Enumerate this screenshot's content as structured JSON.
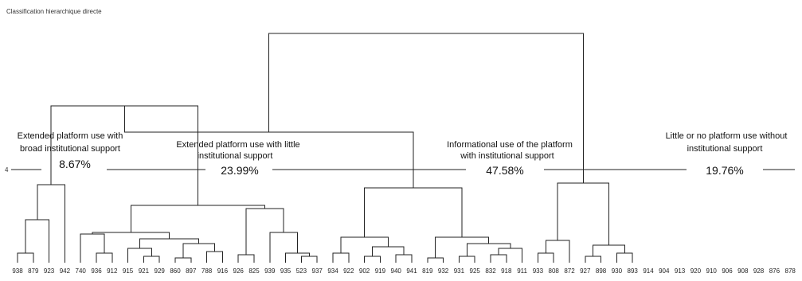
{
  "caption": "Classification hierarchique directe",
  "scale_label": "4",
  "clusters": [
    {
      "title_lines": [
        "Extended platform use with",
        "broad institutional support"
      ],
      "percent": "8.67%"
    },
    {
      "title_lines": [
        "Extended platform use with little",
        "institutional support"
      ],
      "percent": "23.99%"
    },
    {
      "title_lines": [
        "Informational use of the platform",
        "with institutional support"
      ],
      "percent": "47.58%"
    },
    {
      "title_lines": [
        "Little or no platform use without",
        "institutional support"
      ],
      "percent": "19.76%"
    }
  ],
  "leaves": [
    "938",
    "879",
    "923",
    "942",
    "740",
    "936",
    "912",
    "915",
    "921",
    "929",
    "860",
    "897",
    "788",
    "916",
    "926",
    "825",
    "939",
    "935",
    "523",
    "937",
    "934",
    "922",
    "902",
    "919",
    "940",
    "941",
    "819",
    "932",
    "931",
    "925",
    "832",
    "918",
    "911",
    "933",
    "808",
    "872",
    "927",
    "898",
    "930",
    "893",
    "914",
    "904",
    "913",
    "920",
    "910",
    "906",
    "908",
    "928",
    "876",
    "878"
  ]
}
